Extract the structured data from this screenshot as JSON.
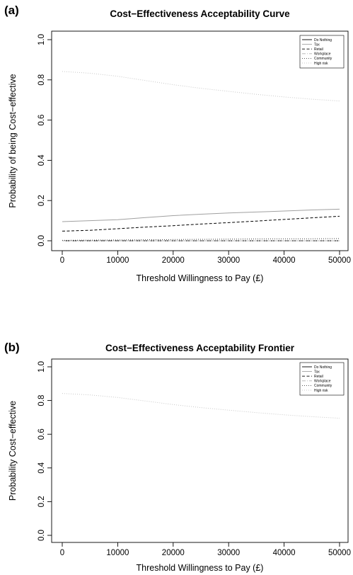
{
  "chart_data": [
    {
      "panel": "(a)",
      "type": "line",
      "title": "Cost−Effectiveness Acceptability Curve",
      "xlabel": "Threshold Willingness to Pay (£)",
      "ylabel": "Probability of being Cost−effective",
      "xlim": [
        0,
        50000
      ],
      "ylim": [
        0,
        1
      ],
      "x_ticks": [
        0,
        10000,
        20000,
        30000,
        40000,
        50000
      ],
      "y_ticks": [
        0.0,
        0.2,
        0.4,
        0.6,
        0.8,
        1.0
      ],
      "x_tick_labels": [
        "0",
        "10000",
        "20000",
        "30000",
        "40000",
        "50000"
      ],
      "y_tick_labels": [
        "0.0",
        "0.2",
        "0.4",
        "0.6",
        "0.8",
        "1.0"
      ],
      "legend_position": "top-right",
      "grid": false,
      "x": [
        0,
        5000,
        10000,
        15000,
        20000,
        25000,
        30000,
        35000,
        40000,
        45000,
        50000
      ],
      "series": [
        {
          "name": "Do Nothing",
          "style": "solid",
          "color": "#000000",
          "values": [
            0.0,
            0.0,
            0.0,
            0.0,
            0.0,
            0.0,
            0.0,
            0.0,
            0.0,
            0.0,
            0.0
          ]
        },
        {
          "name": "Tax",
          "style": "solid",
          "color": "#a0a0a0",
          "values": [
            0.095,
            0.1,
            0.105,
            0.115,
            0.125,
            0.132,
            0.138,
            0.143,
            0.148,
            0.153,
            0.157
          ]
        },
        {
          "name": "Retail",
          "style": "dashed",
          "color": "#000000",
          "values": [
            0.048,
            0.052,
            0.06,
            0.068,
            0.075,
            0.083,
            0.09,
            0.098,
            0.106,
            0.114,
            0.122
          ]
        },
        {
          "name": "Workplace",
          "style": "dashdot",
          "color": "#b0b0b0",
          "values": [
            0.0,
            0.0,
            0.0,
            0.0,
            0.0,
            0.0,
            0.0,
            0.0,
            0.0,
            0.0,
            0.0
          ]
        },
        {
          "name": "Community",
          "style": "dotted",
          "color": "#404040",
          "values": [
            0.002,
            0.003,
            0.004,
            0.005,
            0.006,
            0.007,
            0.008,
            0.009,
            0.01,
            0.01,
            0.011
          ]
        },
        {
          "name": "High risk",
          "style": "dotted",
          "color": "#c8c8c8",
          "values": [
            0.842,
            0.833,
            0.818,
            0.797,
            0.776,
            0.758,
            0.743,
            0.728,
            0.715,
            0.704,
            0.695
          ]
        }
      ]
    },
    {
      "panel": "(b)",
      "type": "line",
      "title": "Cost−Effectiveness Acceptability Frontier",
      "xlabel": "Threshold Willingness to Pay (£)",
      "ylabel": "Probability Cost−effective",
      "xlim": [
        0,
        50000
      ],
      "ylim": [
        0,
        1
      ],
      "x_ticks": [
        0,
        10000,
        20000,
        30000,
        40000,
        50000
      ],
      "y_ticks": [
        0.0,
        0.2,
        0.4,
        0.6,
        0.8,
        1.0
      ],
      "x_tick_labels": [
        "0",
        "10000",
        "20000",
        "30000",
        "40000",
        "50000"
      ],
      "y_tick_labels": [
        "0.0",
        "0.2",
        "0.4",
        "0.6",
        "0.8",
        "1.0"
      ],
      "legend_position": "top-right",
      "grid": false,
      "x": [
        0,
        5000,
        10000,
        15000,
        20000,
        25000,
        30000,
        35000,
        40000,
        45000,
        50000
      ],
      "legend_entries": [
        {
          "name": "Do Nothing",
          "style": "solid",
          "color": "#000000"
        },
        {
          "name": "Tax",
          "style": "solid",
          "color": "#a0a0a0"
        },
        {
          "name": "Retail",
          "style": "dashed",
          "color": "#000000"
        },
        {
          "name": "Workplace",
          "style": "dashdot",
          "color": "#b0b0b0"
        },
        {
          "name": "Community",
          "style": "dotted",
          "color": "#404040"
        },
        {
          "name": "High risk",
          "style": "dotted",
          "color": "#c8c8c8"
        }
      ],
      "series": [
        {
          "name": "High risk",
          "style": "dotted",
          "color": "#c8c8c8",
          "values": [
            0.842,
            0.833,
            0.818,
            0.797,
            0.776,
            0.758,
            0.743,
            0.728,
            0.715,
            0.704,
            0.695
          ]
        }
      ]
    }
  ]
}
